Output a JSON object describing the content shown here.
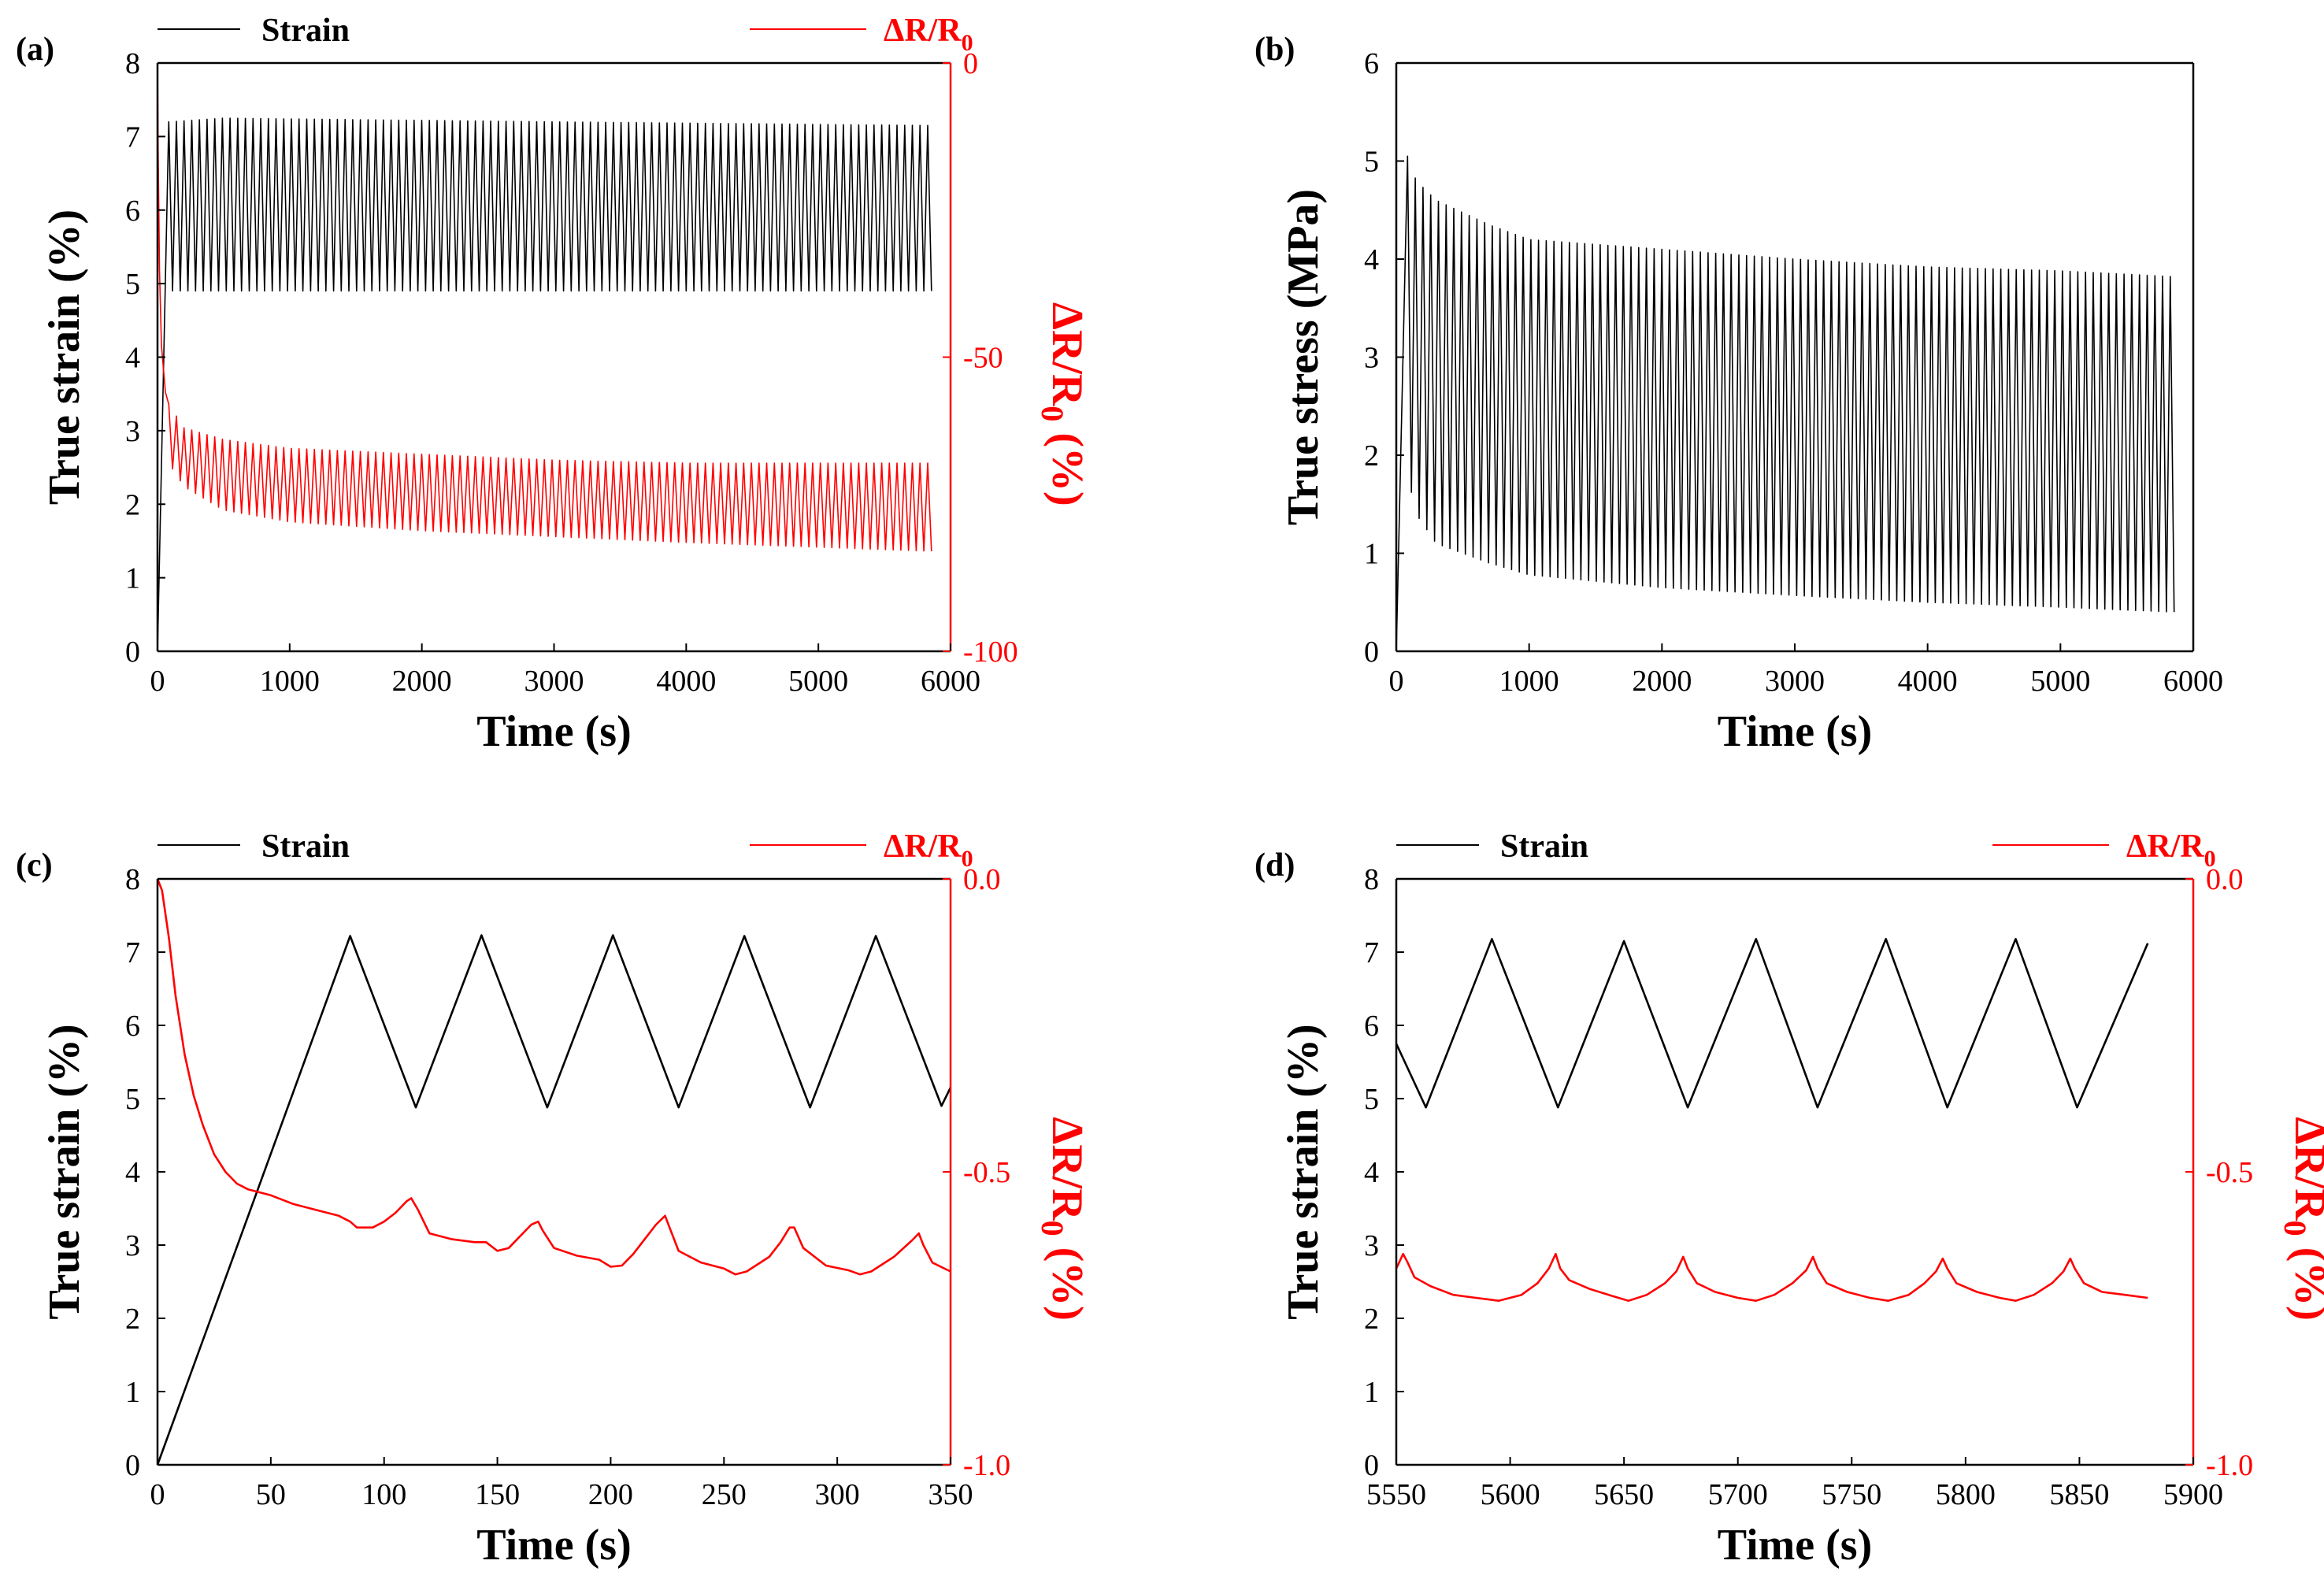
{
  "chart_data": [
    {
      "id": "a",
      "panel_label": "(a)",
      "type": "line",
      "title": "",
      "xlabel": "Time (s)",
      "xlim": [
        0,
        6000
      ],
      "xticks": [
        0,
        1000,
        2000,
        3000,
        4000,
        5000,
        6000
      ],
      "xtick_labels": [
        "0",
        "1000",
        "2000",
        "3000",
        "4000",
        "5000",
        "6000"
      ],
      "ylabel": "True strain (%)",
      "ylim": [
        0,
        8
      ],
      "yticks": [
        0,
        1,
        2,
        3,
        4,
        5,
        6,
        7,
        8
      ],
      "ytick_labels": [
        "0",
        "1",
        "2",
        "3",
        "4",
        "5",
        "6",
        "7",
        "8"
      ],
      "y2label": "ΔR/R0 (%)",
      "y2label_main": "ΔR/R",
      "y2label_sub": "0",
      "y2label_suffix": " (%)",
      "y2lim": [
        -100,
        0
      ],
      "y2ticks": [
        -100,
        -50,
        0
      ],
      "y2tick_labels": [
        "-100",
        "-50",
        "0"
      ],
      "legend": [
        {
          "name": "Strain",
          "color": "#000000",
          "position": "top-left"
        },
        {
          "name": "ΔR/R0",
          "color": "#ff0000",
          "position": "top-right"
        }
      ],
      "legend_labels": {
        "strain": "Strain",
        "resistance": "ΔR/R0",
        "resistance_main": "ΔR/R",
        "resistance_sub": "0"
      },
      "series": [
        {
          "name": "Strain",
          "axis": "left",
          "color": "#000000",
          "kind": "cyclic-dense",
          "x_range": [
            0,
            5860
          ],
          "ramp_end_x": 85,
          "period": 58,
          "start_phase": "peak",
          "envelope_max": {
            "x": [
              85,
              500,
              3000,
              5860
            ],
            "y": [
              7.2,
              7.25,
              7.2,
              7.15
            ]
          },
          "envelope_min": {
            "x": [
              85,
              500,
              3000,
              5860
            ],
            "y": [
              4.9,
              4.9,
              4.9,
              4.9
            ]
          }
        },
        {
          "name": "ΔR/R0",
          "axis": "right",
          "color": "#ff0000",
          "kind": "cyclic-dense",
          "x_range": [
            0,
            5860
          ],
          "initial_drop": {
            "x": [
              0,
              5,
              15,
              30,
              60,
              85
            ],
            "y": [
              0,
              -15,
              -35,
              -48,
              -56,
              -58
            ]
          },
          "period": 58,
          "envelope_max": {
            "x": [
              85,
              200,
              500,
              1000,
              2000,
              3000,
              4000,
              5860
            ],
            "y": [
              -58,
              -62,
              -64,
              -65.5,
              -66.5,
              -67.5,
              -68,
              -68
            ]
          },
          "envelope_min": {
            "x": [
              85,
              200,
              500,
              1000,
              2000,
              3000,
              4000,
              5860
            ],
            "y": [
              -68,
              -72,
              -76,
              -78,
              -79.5,
              -80.5,
              -81.5,
              -83
            ]
          }
        }
      ]
    },
    {
      "id": "b",
      "panel_label": "(b)",
      "type": "line",
      "title": "",
      "xlabel": "Time (s)",
      "xlim": [
        0,
        6000
      ],
      "xticks": [
        0,
        1000,
        2000,
        3000,
        4000,
        5000,
        6000
      ],
      "xtick_labels": [
        "0",
        "1000",
        "2000",
        "3000",
        "4000",
        "5000",
        "6000"
      ],
      "ylabel": "True stress (MPa)",
      "ylim": [
        0,
        6
      ],
      "yticks": [
        0,
        1,
        2,
        3,
        4,
        5,
        6
      ],
      "ytick_labels": [
        "0",
        "1",
        "2",
        "3",
        "4",
        "5",
        "6"
      ],
      "series": [
        {
          "name": "True stress",
          "axis": "left",
          "color": "#000000",
          "kind": "cyclic-dense",
          "x_range": [
            0,
            5860
          ],
          "ramp_end_x": 85,
          "period": 58,
          "start_phase": "peak",
          "envelope_max": {
            "x": [
              85,
              150,
              300,
              700,
              1000,
              2000,
              3000,
              4000,
              5000,
              5860
            ],
            "y": [
              5.05,
              4.8,
              4.6,
              4.35,
              4.2,
              4.1,
              4.0,
              3.92,
              3.88,
              3.82
            ]
          },
          "envelope_min": {
            "x": [
              85,
              150,
              300,
              700,
              1000,
              2000,
              3000,
              4000,
              5000,
              5860
            ],
            "y": [
              1.8,
              1.4,
              1.1,
              0.9,
              0.78,
              0.65,
              0.57,
              0.5,
              0.45,
              0.4
            ]
          }
        }
      ]
    },
    {
      "id": "c",
      "panel_label": "(c)",
      "type": "line",
      "title": "",
      "xlabel": "Time (s)",
      "xlim": [
        0,
        350
      ],
      "xticks": [
        0,
        50,
        100,
        150,
        200,
        250,
        300,
        350
      ],
      "xtick_labels": [
        "0",
        "50",
        "100",
        "150",
        "200",
        "250",
        "300",
        "350"
      ],
      "ylabel": "True strain (%)",
      "ylim": [
        0,
        8
      ],
      "yticks": [
        0,
        1,
        2,
        3,
        4,
        5,
        6,
        7,
        8
      ],
      "ytick_labels": [
        "0",
        "1",
        "2",
        "3",
        "4",
        "5",
        "6",
        "7",
        "8"
      ],
      "y2label": "ΔR/R0 (%)",
      "y2label_main": "ΔR/R",
      "y2label_sub": "0",
      "y2label_suffix": " (%)",
      "y2lim": [
        -1.0,
        0.0
      ],
      "y2ticks": [
        -1.0,
        -0.5,
        0.0
      ],
      "y2tick_labels": [
        "-1.0",
        "-0.5",
        "0.0"
      ],
      "legend": [
        {
          "name": "Strain",
          "color": "#000000",
          "position": "top-left"
        },
        {
          "name": "ΔR/R0",
          "color": "#ff0000",
          "position": "top-right"
        }
      ],
      "legend_labels": {
        "strain": "Strain",
        "resistance": "ΔR/R0",
        "resistance_main": "ΔR/R",
        "resistance_sub": "0"
      },
      "series": [
        {
          "name": "Strain",
          "axis": "left",
          "color": "#000000",
          "x": [
            0,
            85,
            114,
            143,
            172,
            201,
            230,
            259,
            288,
            317,
            346,
            350
          ],
          "y": [
            0,
            7.22,
            4.88,
            7.23,
            4.88,
            7.23,
            4.88,
            7.22,
            4.88,
            7.22,
            4.9,
            5.15
          ]
        },
        {
          "name": "ΔR/R0",
          "axis": "right",
          "color": "#ff0000",
          "x": [
            0,
            2,
            5,
            8,
            12,
            16,
            20,
            25,
            30,
            35,
            40,
            50,
            60,
            70,
            80,
            85,
            88,
            95,
            100,
            105,
            110,
            112,
            115,
            120,
            130,
            140,
            145,
            150,
            155,
            160,
            165,
            168,
            170,
            175,
            185,
            195,
            200,
            205,
            210,
            215,
            220,
            224,
            226,
            230,
            240,
            250,
            255,
            260,
            270,
            275,
            279,
            281,
            285,
            295,
            305,
            310,
            315,
            325,
            333,
            336,
            338,
            342,
            350
          ],
          "y": [
            0.0,
            -0.02,
            -0.1,
            -0.2,
            -0.3,
            -0.37,
            -0.42,
            -0.47,
            -0.5,
            -0.52,
            -0.53,
            -0.54,
            -0.555,
            -0.565,
            -0.575,
            -0.585,
            -0.595,
            -0.595,
            -0.585,
            -0.57,
            -0.55,
            -0.545,
            -0.565,
            -0.605,
            -0.615,
            -0.62,
            -0.62,
            -0.635,
            -0.63,
            -0.61,
            -0.59,
            -0.585,
            -0.6,
            -0.63,
            -0.643,
            -0.65,
            -0.662,
            -0.66,
            -0.64,
            -0.615,
            -0.59,
            -0.575,
            -0.595,
            -0.635,
            -0.655,
            -0.665,
            -0.675,
            -0.67,
            -0.645,
            -0.62,
            -0.595,
            -0.595,
            -0.63,
            -0.66,
            -0.668,
            -0.675,
            -0.67,
            -0.645,
            -0.617,
            -0.605,
            -0.625,
            -0.655,
            -0.67
          ]
        }
      ]
    },
    {
      "id": "d",
      "panel_label": "(d)",
      "type": "line",
      "title": "",
      "xlabel": "Time (s)",
      "xlim": [
        5550,
        5900
      ],
      "xticks": [
        5550,
        5600,
        5650,
        5700,
        5750,
        5800,
        5850,
        5900
      ],
      "xtick_labels": [
        "5550",
        "5600",
        "5650",
        "5700",
        "5750",
        "5800",
        "5850",
        "5900"
      ],
      "ylabel": "True strain (%)",
      "ylim": [
        0,
        8
      ],
      "yticks": [
        0,
        1,
        2,
        3,
        4,
        5,
        6,
        7,
        8
      ],
      "ytick_labels": [
        "0",
        "1",
        "2",
        "3",
        "4",
        "5",
        "6",
        "7",
        "8"
      ],
      "y2label": "ΔR/R0 (%)",
      "y2label_main": "ΔR/R",
      "y2label_sub": "0",
      "y2label_suffix": " (%)",
      "y2lim": [
        -1.0,
        0.0
      ],
      "y2ticks": [
        -1.0,
        -0.5,
        0.0
      ],
      "y2tick_labels": [
        "-1.0",
        "-0.5",
        "0.0"
      ],
      "legend": [
        {
          "name": "Strain",
          "color": "#000000",
          "position": "top-left"
        },
        {
          "name": "ΔR/R0",
          "color": "#ff0000",
          "position": "top-right"
        }
      ],
      "legend_labels": {
        "strain": "Strain",
        "resistance": "ΔR/R0",
        "resistance_main": "ΔR/R",
        "resistance_sub": "0"
      },
      "series": [
        {
          "name": "Strain",
          "axis": "left",
          "color": "#000000",
          "x": [
            5550,
            5563,
            5592,
            5621,
            5650,
            5678,
            5708,
            5735,
            5765,
            5792,
            5822,
            5849,
            5880
          ],
          "y": [
            5.75,
            4.88,
            7.18,
            4.88,
            7.15,
            4.88,
            7.18,
            4.88,
            7.18,
            4.88,
            7.18,
            4.88,
            7.12
          ]
        },
        {
          "name": "ΔR/R0",
          "axis": "right",
          "color": "#ff0000",
          "x": [
            5550,
            5553,
            5555,
            5558,
            5565,
            5575,
            5585,
            5595,
            5605,
            5612,
            5617,
            5620,
            5622,
            5626,
            5635,
            5645,
            5652,
            5660,
            5668,
            5673,
            5676,
            5678,
            5682,
            5690,
            5700,
            5708,
            5716,
            5724,
            5730,
            5733,
            5735,
            5739,
            5748,
            5758,
            5766,
            5775,
            5782,
            5787,
            5790,
            5792,
            5796,
            5805,
            5815,
            5822,
            5830,
            5838,
            5843,
            5846,
            5848,
            5852,
            5860,
            5870,
            5880
          ],
          "y": [
            -0.665,
            -0.64,
            -0.655,
            -0.68,
            -0.695,
            -0.71,
            -0.715,
            -0.72,
            -0.71,
            -0.69,
            -0.665,
            -0.64,
            -0.665,
            -0.685,
            -0.7,
            -0.712,
            -0.72,
            -0.71,
            -0.69,
            -0.67,
            -0.645,
            -0.665,
            -0.69,
            -0.705,
            -0.715,
            -0.72,
            -0.71,
            -0.69,
            -0.668,
            -0.645,
            -0.665,
            -0.69,
            -0.705,
            -0.715,
            -0.72,
            -0.71,
            -0.69,
            -0.67,
            -0.648,
            -0.665,
            -0.69,
            -0.705,
            -0.715,
            -0.72,
            -0.71,
            -0.69,
            -0.67,
            -0.648,
            -0.665,
            -0.69,
            -0.705,
            -0.71,
            -0.715
          ]
        }
      ]
    }
  ]
}
